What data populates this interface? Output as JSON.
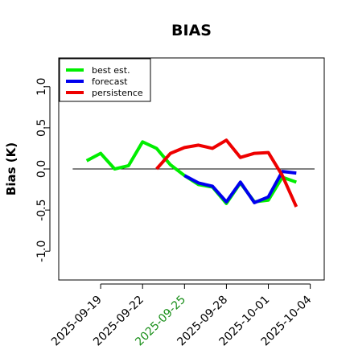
{
  "chart_data": {
    "type": "line",
    "title": "BIAS",
    "ylabel": "Bias (K)",
    "xlabel": "",
    "xlim": [
      "2025-09-16",
      "2025-10-05"
    ],
    "ylim": [
      -1.35,
      1.35
    ],
    "yticks": [
      -1.0,
      -0.5,
      0.0,
      0.5,
      1.0
    ],
    "ytick_labels": [
      "-1.0",
      "-0.5",
      "0.0",
      "0.5",
      "1.0"
    ],
    "xticks": [
      "2025-09-19",
      "2025-09-22",
      "2025-09-25",
      "2025-09-28",
      "2025-10-01",
      "2025-10-04"
    ],
    "xtick_colors": [
      "#000000",
      "#000000",
      "#1a8f1a",
      "#000000",
      "#000000",
      "#000000"
    ],
    "reference_line": 0,
    "grid": false,
    "legend_position": "top-left",
    "series": [
      {
        "name": "best est.",
        "color": "#00ee00",
        "x": [
          "2025-09-18",
          "2025-09-19",
          "2025-09-20",
          "2025-09-21",
          "2025-09-22",
          "2025-09-23",
          "2025-09-24",
          "2025-09-25",
          "2025-09-26",
          "2025-09-27",
          "2025-09-28",
          "2025-09-29",
          "2025-09-30",
          "2025-10-01",
          "2025-10-02",
          "2025-10-03"
        ],
        "y": [
          0.1,
          0.19,
          0.0,
          0.04,
          0.33,
          0.25,
          0.05,
          -0.08,
          -0.19,
          -0.22,
          -0.42,
          -0.17,
          -0.4,
          -0.38,
          -0.1,
          -0.16
        ]
      },
      {
        "name": "forecast",
        "color": "#0000ee",
        "x": [
          "2025-09-25",
          "2025-09-26",
          "2025-09-27",
          "2025-09-28",
          "2025-09-29",
          "2025-09-30",
          "2025-10-01",
          "2025-10-02",
          "2025-10-03"
        ],
        "y": [
          -0.08,
          -0.17,
          -0.21,
          -0.4,
          -0.16,
          -0.41,
          -0.34,
          -0.03,
          -0.05
        ]
      },
      {
        "name": "persistence",
        "color": "#ee0000",
        "x": [
          "2025-09-23",
          "2025-09-24",
          "2025-09-25",
          "2025-09-26",
          "2025-09-27",
          "2025-09-28",
          "2025-09-29",
          "2025-09-30",
          "2025-10-01",
          "2025-10-02",
          "2025-10-03"
        ],
        "y": [
          0.0,
          0.19,
          0.26,
          0.29,
          0.25,
          0.35,
          0.14,
          0.19,
          0.2,
          -0.08,
          -0.46
        ]
      }
    ]
  }
}
